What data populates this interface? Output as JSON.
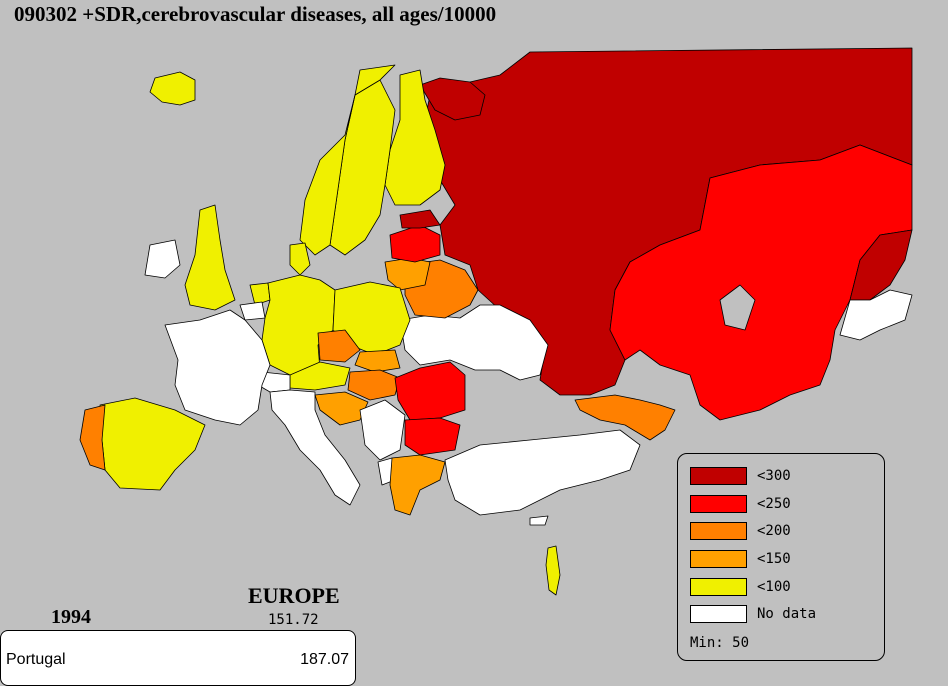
{
  "title": "090302 +SDR,cerebrovascular diseases, all ages/10000",
  "region": {
    "name": "EUROPE",
    "value": "151.72"
  },
  "year": "1994",
  "selected": {
    "country": "Portugal",
    "value": "187.07"
  },
  "legend": {
    "items": [
      {
        "label": "<300",
        "color": "#c00000"
      },
      {
        "label": "<250",
        "color": "#ff0000"
      },
      {
        "label": "<200",
        "color": "#ff8000"
      },
      {
        "label": "<150",
        "color": "#ffa000"
      },
      {
        "label": "<100",
        "color": "#f0f000"
      },
      {
        "label": "No data",
        "color": "#ffffff"
      }
    ],
    "min_label": "Min: 50"
  },
  "classes": {
    "russia": "<300",
    "baltic_north": "<300",
    "kazakhstan": "<250",
    "ukraine": "<250",
    "romania": "<250",
    "bulgaria": "<250",
    "lithuania": "<250",
    "belarus": "<200",
    "czech": "<200",
    "portugal": "<200",
    "caucasus": "<200",
    "hungary": "<200",
    "greece": "<150",
    "latvia": "<150",
    "slovakia": "<150",
    "croatia": "<150",
    "spain": "<100",
    "uk": "<100",
    "germany": "<100",
    "poland": "<100",
    "sweden": "<100",
    "finland": "<100",
    "norway": "<100",
    "iceland": "<100",
    "austria": "<100",
    "denmark": "<100",
    "netherlands": "<100",
    "israel": "<100",
    "france": "No data",
    "italy": "No data",
    "turkey": "No data",
    "ireland": "No data",
    "western_ukraine": "No data",
    "switzerland": "No data",
    "yugoslavia": "No data",
    "albania": "No data",
    "cyprus": "No data",
    "belgium": "No data",
    "central_asia": "No data"
  }
}
